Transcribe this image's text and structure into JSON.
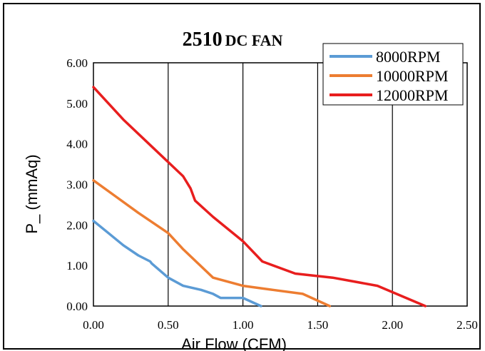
{
  "chart_data": {
    "type": "line",
    "title_main": "2510",
    "title_rest": "DC FAN",
    "xlabel": "Air Flow (CFM)",
    "ylabel": "P_ (mmAq)",
    "xlim": [
      0,
      2.5
    ],
    "ylim": [
      0,
      6
    ],
    "x_ticks": [
      "0.00",
      "0.50",
      "1.00",
      "1.50",
      "2.00",
      "2.50"
    ],
    "y_ticks": [
      "0.00",
      "1.00",
      "2.00",
      "3.00",
      "4.00",
      "5.00",
      "6.00"
    ],
    "grid": "vertical",
    "legend_position": "top-right",
    "series": [
      {
        "name": "8000RPM",
        "color": "#5B9BD5",
        "points": [
          [
            0.0,
            2.1
          ],
          [
            0.1,
            1.8
          ],
          [
            0.2,
            1.5
          ],
          [
            0.3,
            1.25
          ],
          [
            0.38,
            1.1
          ],
          [
            0.39,
            1.05
          ],
          [
            0.5,
            0.7
          ],
          [
            0.6,
            0.5
          ],
          [
            0.72,
            0.4
          ],
          [
            0.8,
            0.3
          ],
          [
            0.85,
            0.2
          ],
          [
            0.95,
            0.2
          ],
          [
            1.0,
            0.2
          ],
          [
            1.12,
            0.0
          ]
        ]
      },
      {
        "name": "10000RPM",
        "color": "#ED7D31",
        "points": [
          [
            0.0,
            3.1
          ],
          [
            0.15,
            2.7
          ],
          [
            0.3,
            2.3
          ],
          [
            0.5,
            1.8
          ],
          [
            0.6,
            1.4
          ],
          [
            0.8,
            0.7
          ],
          [
            1.0,
            0.5
          ],
          [
            1.2,
            0.4
          ],
          [
            1.4,
            0.3
          ],
          [
            1.58,
            0.0
          ]
        ]
      },
      {
        "name": "12000RPM",
        "color": "#E81E1E",
        "points": [
          [
            0.0,
            5.4
          ],
          [
            0.2,
            4.6
          ],
          [
            0.4,
            3.9
          ],
          [
            0.6,
            3.2
          ],
          [
            0.65,
            2.9
          ],
          [
            0.68,
            2.6
          ],
          [
            0.8,
            2.2
          ],
          [
            1.0,
            1.6
          ],
          [
            1.13,
            1.1
          ],
          [
            1.35,
            0.8
          ],
          [
            1.6,
            0.7
          ],
          [
            1.75,
            0.6
          ],
          [
            1.9,
            0.5
          ],
          [
            2.22,
            0.0
          ]
        ]
      }
    ]
  }
}
